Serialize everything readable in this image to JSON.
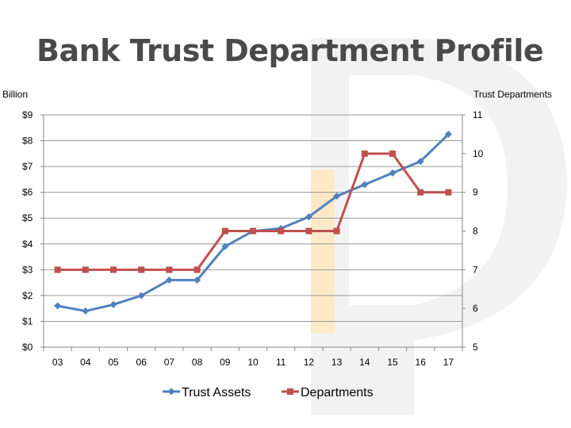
{
  "slide": {
    "title": "Bank Trust Department Profile"
  },
  "chart_data": {
    "type": "line",
    "title": "Bank Trust Department Profile",
    "ylabel": "Billion",
    "y2label": "Trust Departments",
    "categories": [
      "03",
      "04",
      "05",
      "06",
      "07",
      "08",
      "09",
      "10",
      "11",
      "12",
      "13",
      "14",
      "15",
      "16",
      "17"
    ],
    "ylim": [
      0,
      9
    ],
    "y2lim": [
      5,
      11
    ],
    "y_ticks": [
      "$0",
      "$1",
      "$2",
      "$3",
      "$4",
      "$5",
      "$6",
      "$7",
      "$8",
      "$9"
    ],
    "y2_ticks": [
      "5",
      "6",
      "7",
      "8",
      "9",
      "10",
      "11"
    ],
    "grid": true,
    "legend_position": "bottom",
    "series": [
      {
        "name": "Trust Assets",
        "axis": "left",
        "color": "#4f81bd",
        "marker": "diamond",
        "values": [
          1.6,
          1.4,
          1.65,
          2.0,
          2.6,
          2.6,
          3.9,
          4.5,
          4.6,
          5.05,
          5.85,
          6.3,
          6.75,
          7.2,
          8.25
        ]
      },
      {
        "name": "Departments",
        "axis": "right",
        "color": "#c0504d",
        "marker": "square",
        "values": [
          7,
          7,
          7,
          7,
          7,
          7,
          8,
          8,
          8,
          8,
          8,
          10,
          10,
          9,
          9
        ]
      }
    ]
  }
}
